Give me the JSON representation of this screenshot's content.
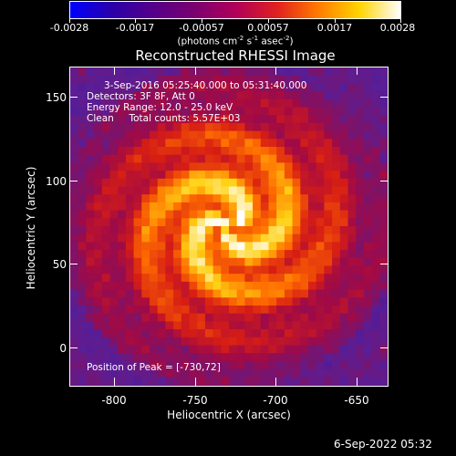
{
  "colorbar": {
    "tick_labels": [
      "-0.0028",
      "-0.0017",
      "-0.00057",
      "0.00057",
      "0.0017",
      "0.0028"
    ],
    "units_main": "(photons cm",
    "units_exp1": "-2",
    "units_mid": " s",
    "units_exp2": "-1",
    "units_mid2": " asec",
    "units_exp3": "-2",
    "units_end": ")",
    "colors": [
      "#0000ff",
      "#2a00aa",
      "#55008a",
      "#7a0070",
      "#b0005a",
      "#e02020",
      "#ff7a00",
      "#ffd400",
      "#ffffff"
    ]
  },
  "title": "Reconstructed RHESSI Image",
  "info": {
    "line1": "3-Sep-2016 05:25:40.000 to 05:31:40.000",
    "line2": "Detectors: 3F 8F, Att 0",
    "line3": "Energy Range: 12.0 - 25.0 keV",
    "line4": "Clean     Total counts: 5.57E+03"
  },
  "peak_text": "Position of Peak = [-730,72]",
  "axes": {
    "x_ticks": [
      "-800",
      "-750",
      "-700",
      "-650"
    ],
    "y_ticks": [
      "150",
      "100",
      "50",
      "0"
    ],
    "xlabel": "Heliocentric X (arcsec)",
    "ylabel": "Heliocentric Y (arcsec)"
  },
  "footer": "6-Sep-2022 05:32"
}
